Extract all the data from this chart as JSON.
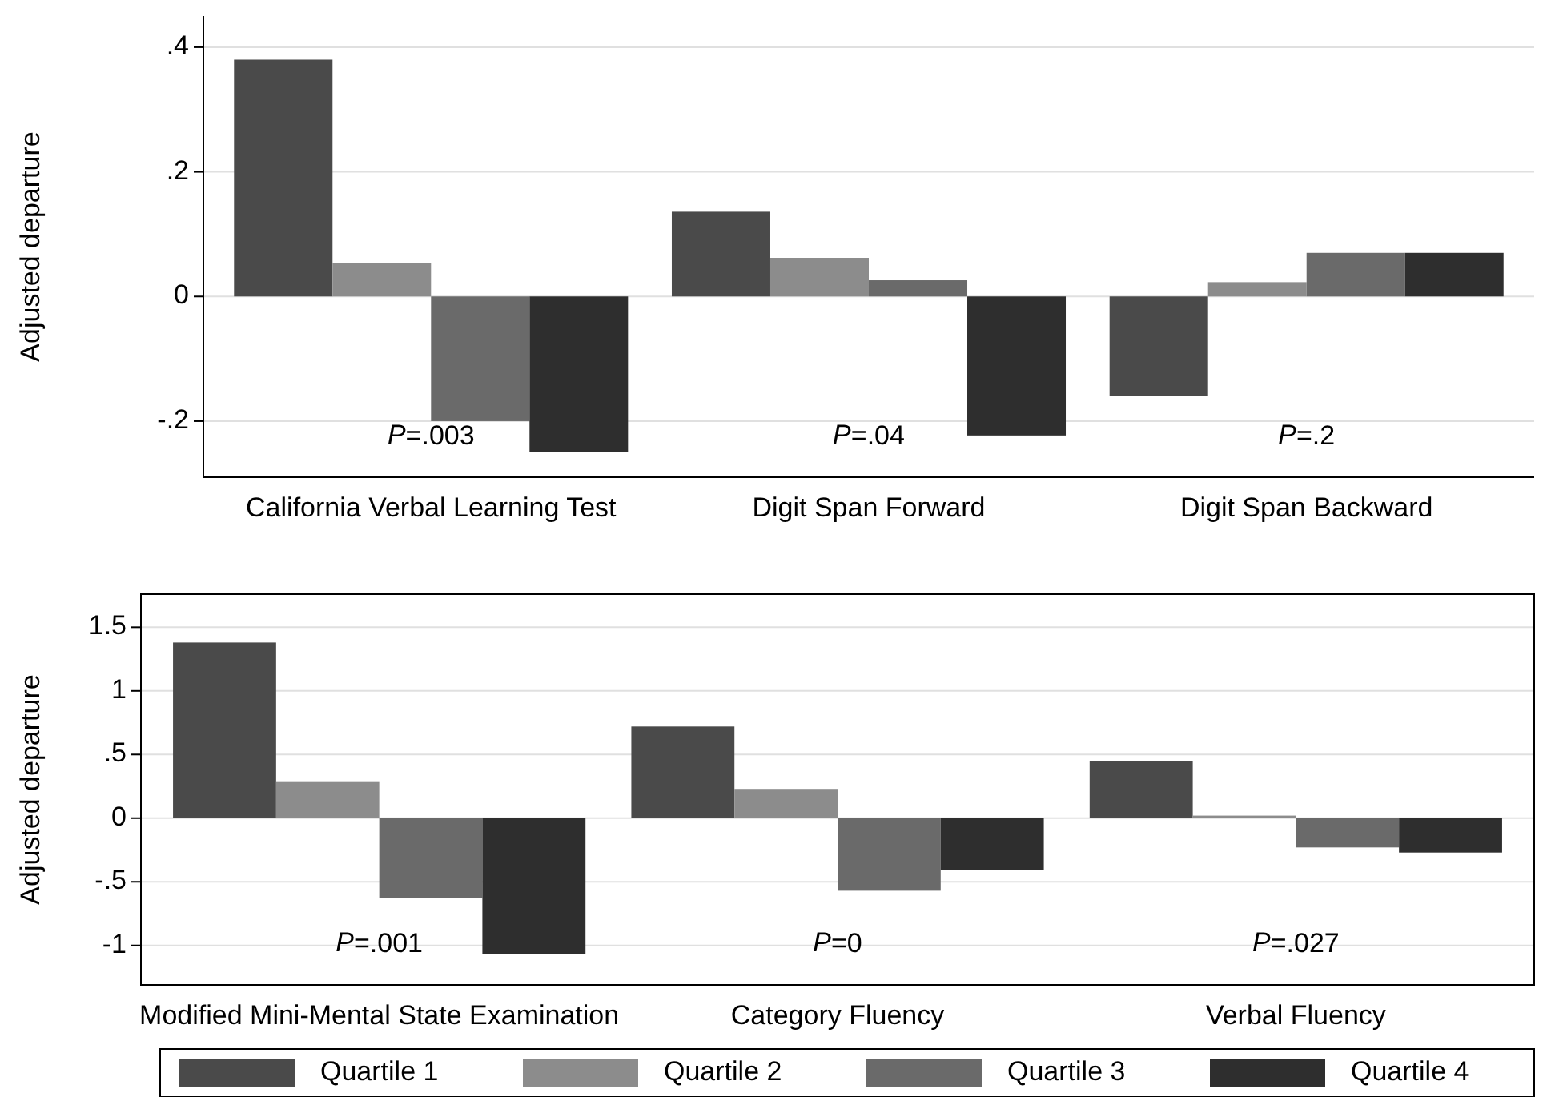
{
  "chart_data": [
    {
      "type": "bar",
      "ylabel": "Adjusted departure",
      "categories": [
        "California Verbal Learning Test",
        "Digit Span Forward",
        "Digit Span Backward"
      ],
      "series": [
        {
          "color": "#4a4a4a",
          "values": [
            0.38,
            0.136,
            -0.16
          ]
        },
        {
          "color": "#8c8c8c",
          "values": [
            0.054,
            0.062,
            0.023
          ]
        },
        {
          "color": "#6a6a6a",
          "values": [
            -0.2,
            0.026,
            0.07
          ]
        },
        {
          "color": "#2e2e2e",
          "values": [
            -0.25,
            -0.223,
            0.07
          ]
        }
      ],
      "ylim": [
        -0.29,
        0.45
      ],
      "yticks": [
        {
          "value": -0.2,
          "label": "-.2"
        },
        0,
        {
          "value": 0.2,
          "label": ".2"
        },
        {
          "value": 0.4,
          "label": ".4"
        }
      ],
      "grid": "y",
      "legend": false,
      "annotations": [
        "P=.003",
        "P=.04",
        "P=.2"
      ]
    },
    {
      "type": "bar",
      "ylabel": "Adjusted departure",
      "categories": [
        "Modified Mini-Mental State Examination",
        "Category Fluency",
        "Verbal Fluency"
      ],
      "series": [
        {
          "name": "Quartile 1",
          "color": "#4a4a4a",
          "values": [
            1.38,
            0.72,
            0.45
          ]
        },
        {
          "name": "Quartile 2",
          "color": "#8c8c8c",
          "values": [
            0.29,
            0.23,
            0.02
          ]
        },
        {
          "name": "Quartile 3",
          "color": "#6a6a6a",
          "values": [
            -0.63,
            -0.57,
            -0.23
          ]
        },
        {
          "name": "Quartile 4",
          "color": "#2e2e2e",
          "values": [
            -1.07,
            -0.41,
            -0.27
          ]
        }
      ],
      "ylim": [
        -1.31,
        1.76
      ],
      "yticks": [
        -1,
        {
          "value": -0.5,
          "label": "-.5"
        },
        0,
        {
          "value": 0.5,
          "label": ".5"
        },
        1,
        1.5
      ],
      "grid": "y",
      "legend": "bottom",
      "annotations": [
        "P=.001",
        "P=0",
        "P=.027"
      ]
    }
  ]
}
